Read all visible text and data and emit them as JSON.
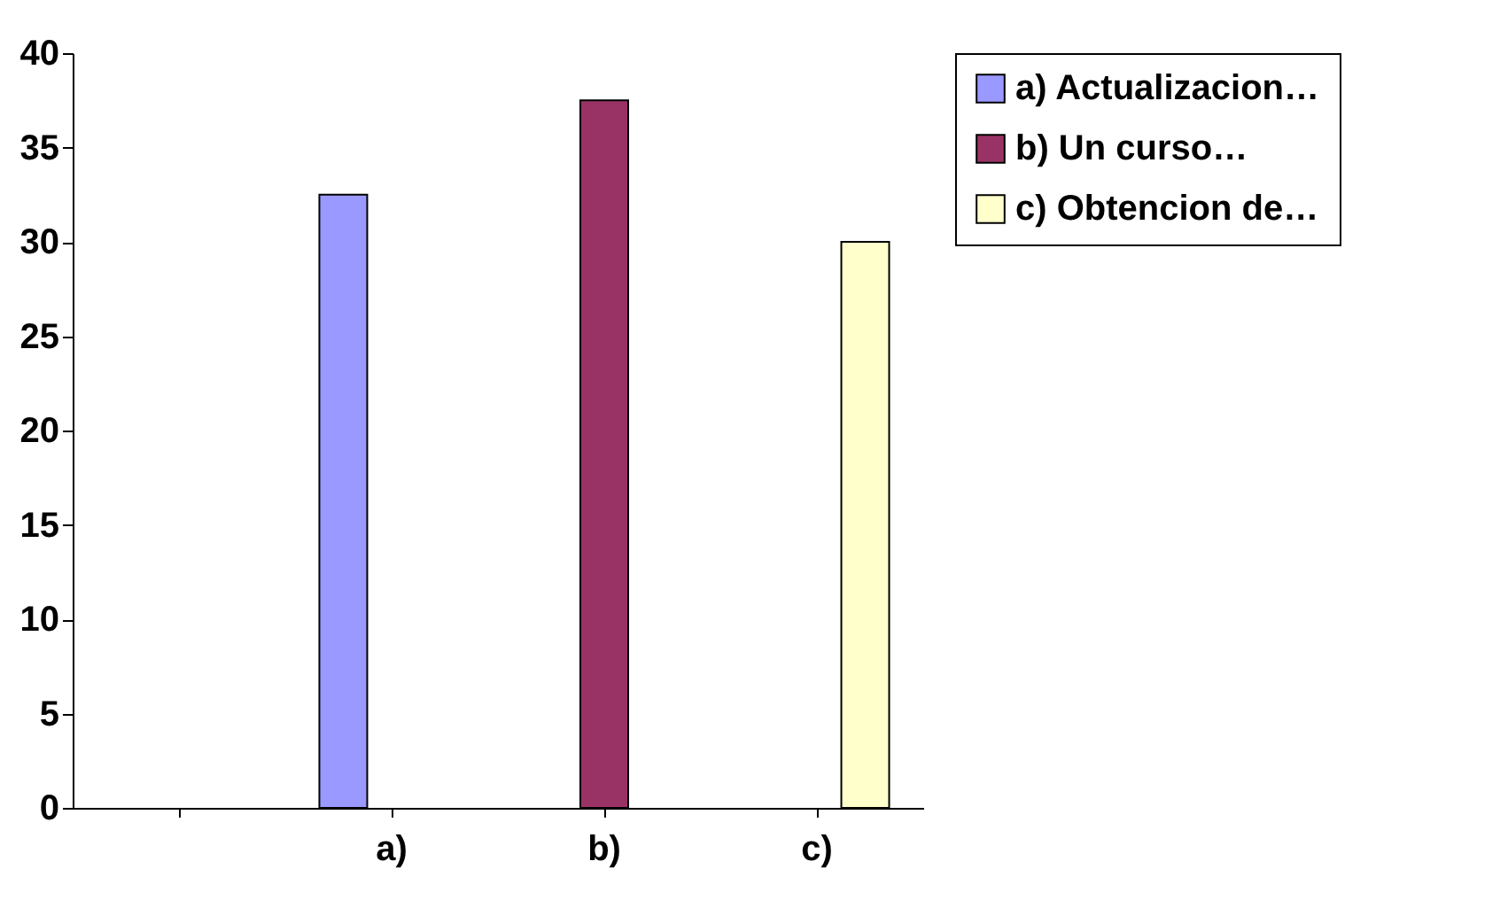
{
  "chart_data": {
    "type": "bar",
    "categories": [
      null,
      "a)",
      "b)",
      "c)"
    ],
    "series": [
      {
        "name": "a) Actualizacion…",
        "color": "#9999ff",
        "values": [
          null,
          32.5,
          null,
          null
        ]
      },
      {
        "name": "b) Un curso…",
        "color": "#993366",
        "values": [
          null,
          null,
          37.5,
          null
        ]
      },
      {
        "name": "c) Obtencion de…",
        "color": "#ffffcc",
        "values": [
          null,
          null,
          null,
          30
        ]
      }
    ],
    "ylim": [
      0,
      40
    ],
    "yticks": [
      0,
      5,
      10,
      15,
      20,
      25,
      30,
      35,
      40
    ],
    "grid": false,
    "legend": "right"
  }
}
